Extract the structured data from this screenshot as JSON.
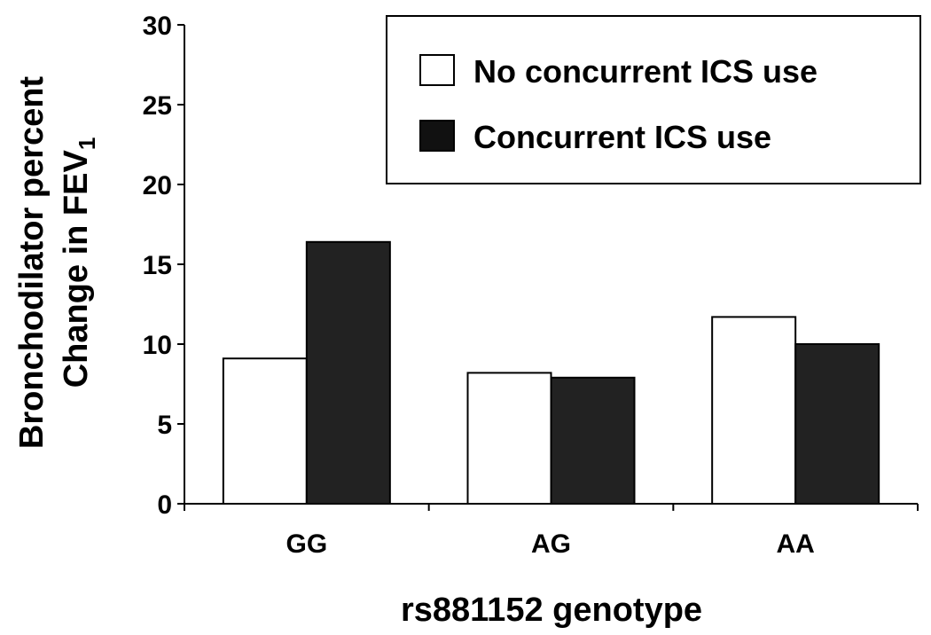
{
  "chart_data": {
    "type": "bar",
    "categories": [
      "GG",
      "AG",
      "AA"
    ],
    "series": [
      {
        "name": "No concurrent ICS use",
        "values": [
          9.1,
          8.2,
          11.7
        ],
        "color": "#ffffff"
      },
      {
        "name": "Concurrent ICS use",
        "values": [
          16.4,
          7.9,
          10.0
        ],
        "color": "#222222"
      }
    ],
    "xlabel": "rs881152 genotype",
    "ylabel": {
      "line1": "Bronchodilator percent",
      "line2": "Change in FEV",
      "line2_subscript": "1"
    },
    "ylim": [
      0,
      30
    ],
    "yticks": [
      0,
      5,
      10,
      15,
      20,
      25,
      30
    ],
    "grid": false,
    "legend_position": "top-right"
  }
}
